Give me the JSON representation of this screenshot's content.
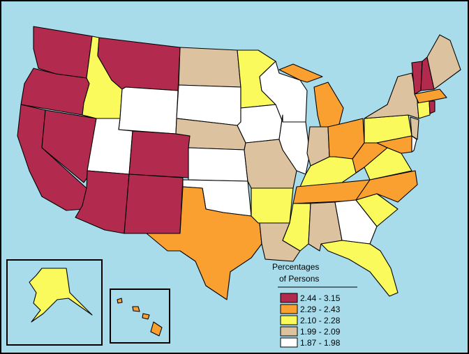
{
  "legend": {
    "title": [
      "Percentages",
      "of Persons"
    ],
    "items": [
      {
        "label": "2.44 - 3.15",
        "color": "#b22a4e"
      },
      {
        "label": "2.29 - 2.43",
        "color": "#f9a030"
      },
      {
        "label": "2.10 - 2.28",
        "color": "#fafa5c"
      },
      {
        "label": "1.99 - 2.09",
        "color": "#ddc29f"
      },
      {
        "label": "1.87 - 1.98",
        "color": "#ffffff"
      }
    ]
  }
}
